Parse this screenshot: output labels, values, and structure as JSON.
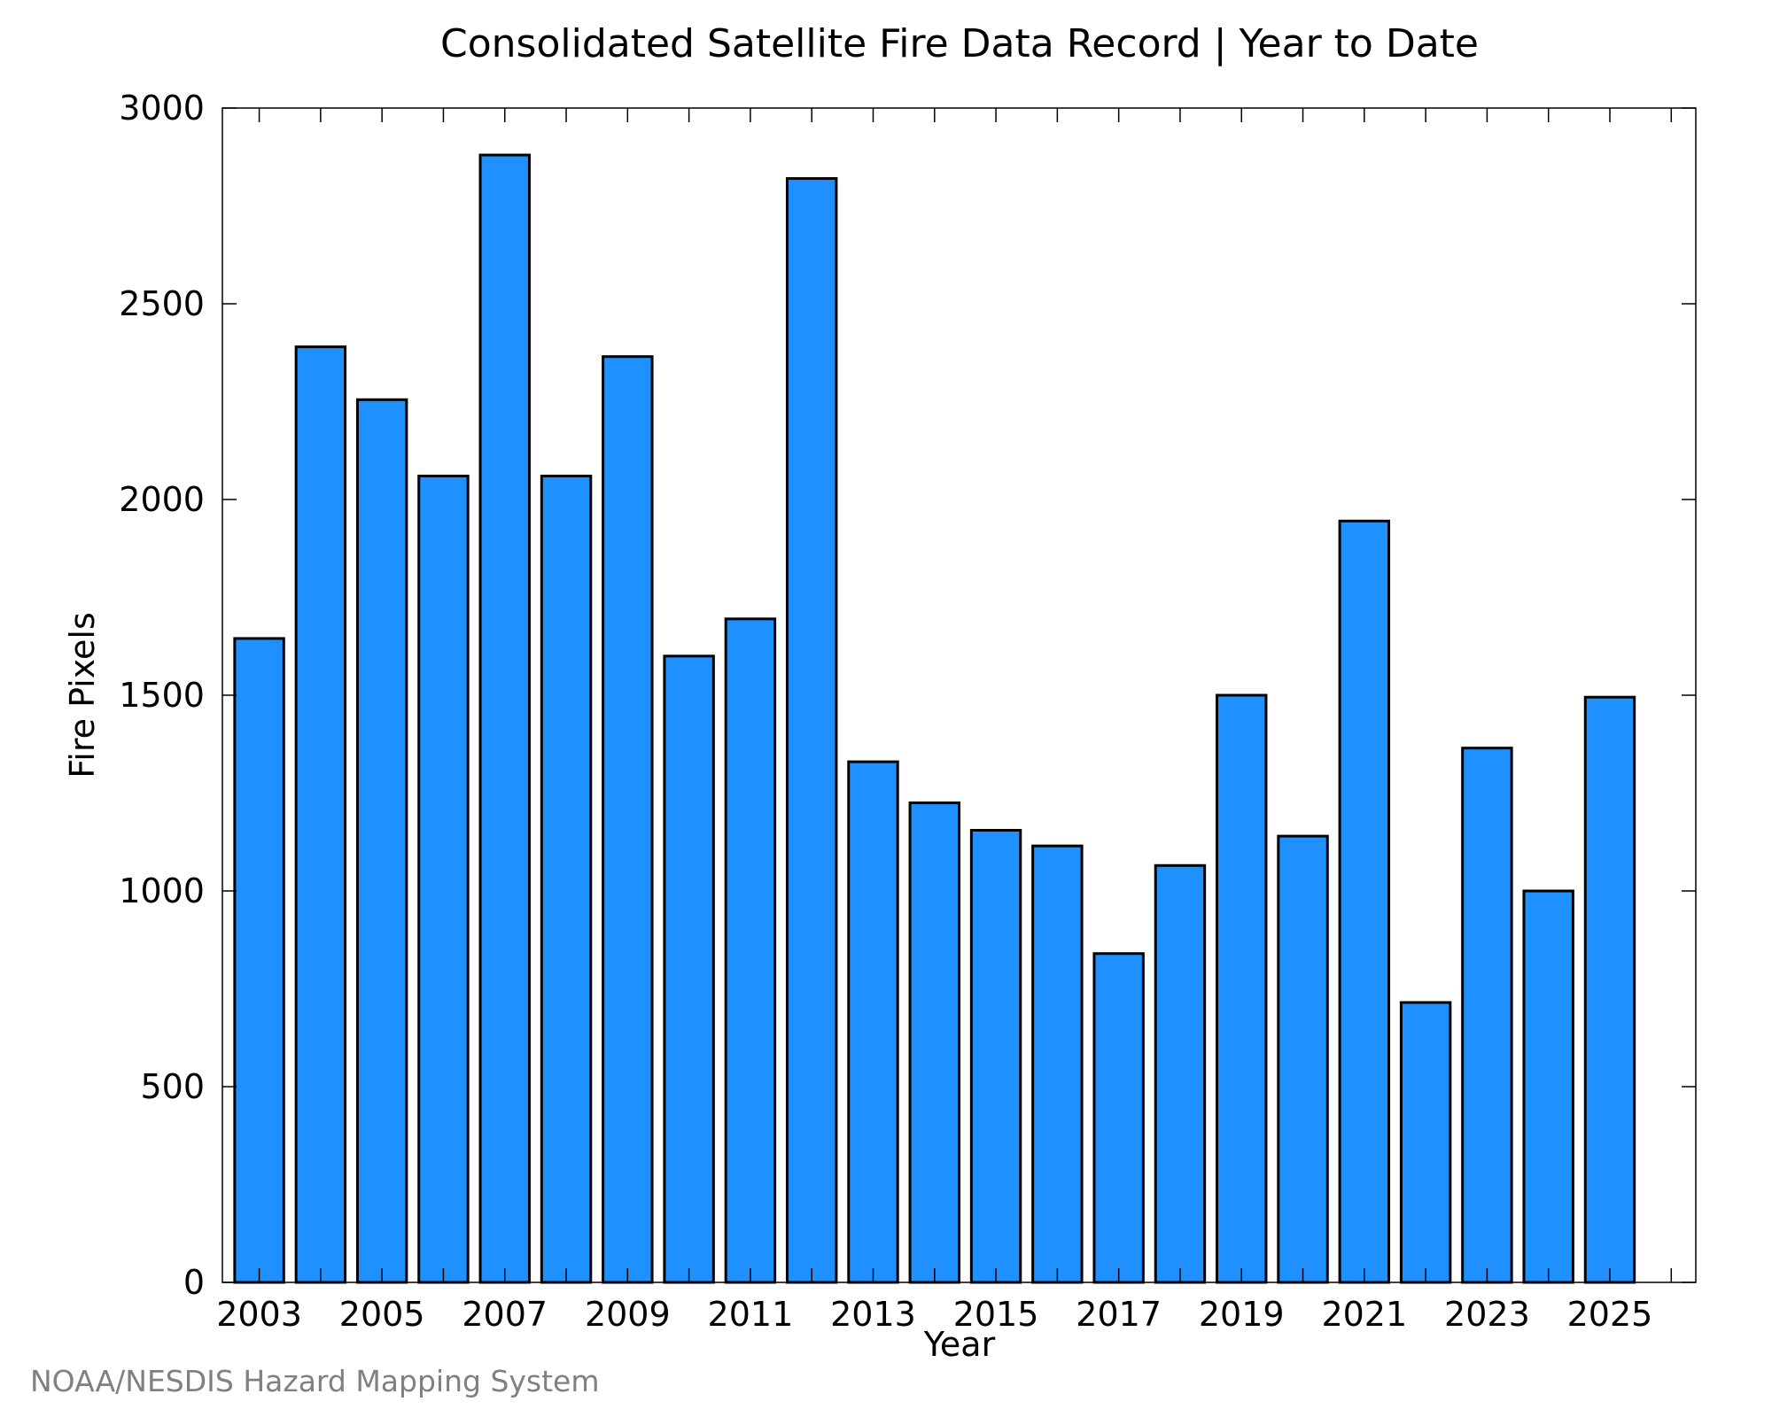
{
  "colors": {
    "bar_fill": "#1e90ff",
    "bar_stroke": "#000000",
    "axis": "#000000",
    "credit_text": "#808080"
  },
  "credit": "NOAA/NESDIS Hazard Mapping System",
  "chart_data": {
    "type": "bar",
    "title": "Consolidated Satellite Fire Data Record | Year to Date",
    "xlabel": "Year",
    "ylabel": "Fire Pixels",
    "ylim": [
      0,
      3000
    ],
    "xlim": [
      2002.4,
      2026.4
    ],
    "yticks": [
      0,
      500,
      1000,
      1500,
      2000,
      2500,
      3000
    ],
    "xticks": [
      2003,
      2005,
      2007,
      2009,
      2011,
      2013,
      2015,
      2017,
      2019,
      2021,
      2023,
      2025
    ],
    "xticks_minor": [
      2004,
      2006,
      2008,
      2010,
      2012,
      2014,
      2016,
      2018,
      2020,
      2022,
      2024,
      2026
    ],
    "grid": false,
    "legend": "none",
    "categories": [
      2003,
      2004,
      2005,
      2006,
      2007,
      2008,
      2009,
      2010,
      2011,
      2012,
      2013,
      2014,
      2015,
      2016,
      2017,
      2018,
      2019,
      2020,
      2021,
      2022,
      2023,
      2024,
      2025
    ],
    "values": [
      1645,
      2390,
      2255,
      2060,
      2880,
      2060,
      2365,
      1600,
      1695,
      2820,
      1330,
      1225,
      1155,
      1115,
      840,
      1065,
      1500,
      1140,
      1945,
      715,
      1365,
      1000,
      1495
    ]
  }
}
